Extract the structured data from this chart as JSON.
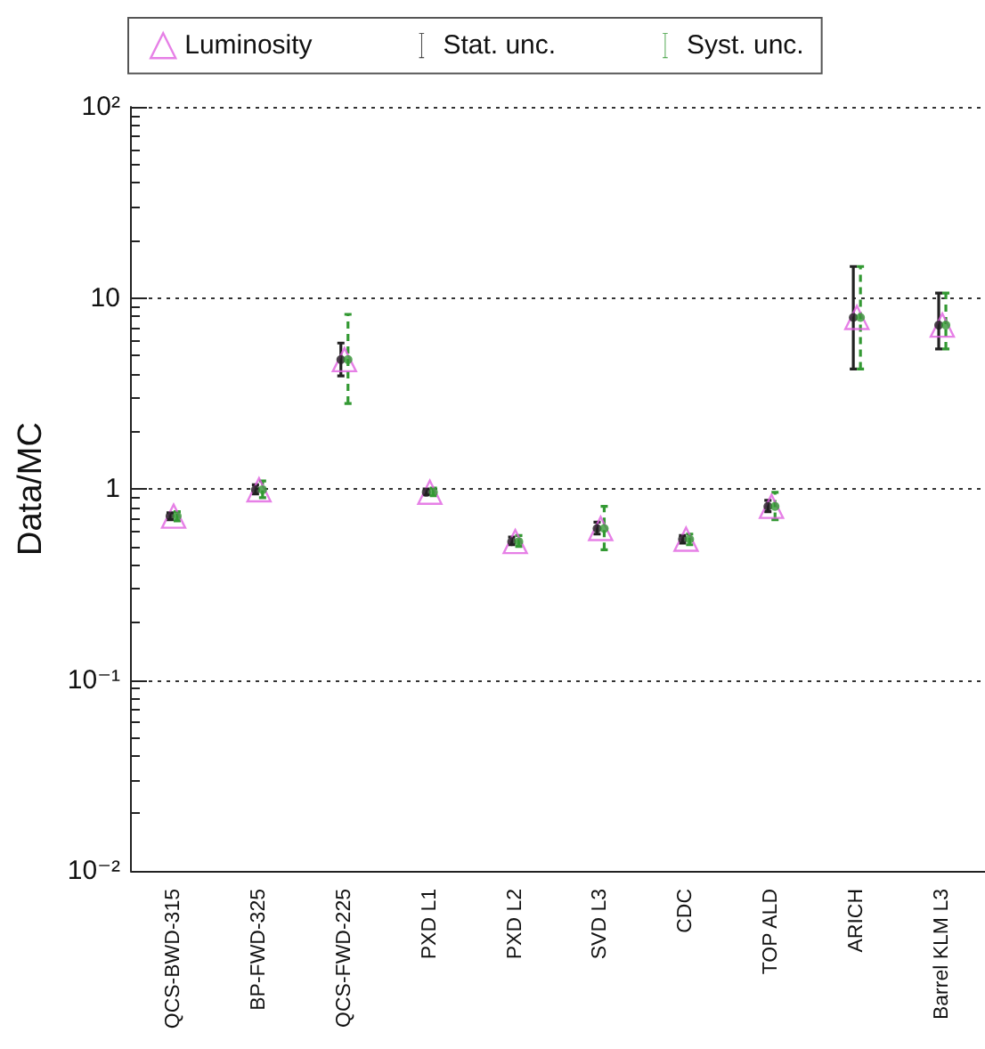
{
  "chart_data": {
    "type": "scatter",
    "ylabel": "Data/MC",
    "categories": [
      "QCS-BWD-315",
      "BP-FWD-325",
      "QCS-FWD-225",
      "PXD L1",
      "PXD L2",
      "SVD L3",
      "CDC",
      "TOP ALD",
      "ARICH",
      "Barrel KLM L3"
    ],
    "series": [
      {
        "name": "Luminosity",
        "marker": "triangle",
        "color": "#e060e0",
        "values": [
          0.72,
          0.99,
          4.75,
          0.96,
          0.53,
          0.62,
          0.545,
          0.81,
          7.9,
          7.2
        ]
      },
      {
        "name": "Stat. unc.",
        "line_style": "solid",
        "color": "#222222",
        "values": [
          0.72,
          0.99,
          4.75,
          0.96,
          0.53,
          0.62,
          0.545,
          0.81,
          7.9,
          7.2
        ],
        "errors": [
          [
            0.69,
            0.75
          ],
          [
            0.94,
            1.05
          ],
          [
            3.9,
            5.8
          ],
          [
            0.93,
            1.0
          ],
          [
            0.51,
            0.56
          ],
          [
            0.58,
            0.67
          ],
          [
            0.52,
            0.57
          ],
          [
            0.76,
            0.87
          ],
          [
            4.24,
            14.6
          ],
          [
            5.4,
            10.6
          ]
        ]
      },
      {
        "name": "Syst. unc.",
        "line_style": "dashed",
        "color": "#339933",
        "values": [
          0.72,
          0.99,
          4.75,
          0.96,
          0.53,
          0.62,
          0.545,
          0.81,
          7.9,
          7.2
        ],
        "errors": [
          [
            0.68,
            0.76
          ],
          [
            0.9,
            1.1
          ],
          [
            2.8,
            8.2
          ],
          [
            0.92,
            1.01
          ],
          [
            0.5,
            0.57
          ],
          [
            0.48,
            0.81
          ],
          [
            0.51,
            0.58
          ],
          [
            0.69,
            0.96
          ],
          [
            4.24,
            14.6
          ],
          [
            5.4,
            10.6
          ]
        ]
      }
    ],
    "log": "y",
    "ylim": [
      0.01,
      100
    ],
    "yticks": [
      {
        "value": 0.01,
        "label": "10⁻²"
      },
      {
        "value": 0.1,
        "label": "10⁻¹"
      },
      1,
      10,
      {
        "value": 100,
        "label": "10²"
      }
    ],
    "grid": "y",
    "legend": "top"
  }
}
